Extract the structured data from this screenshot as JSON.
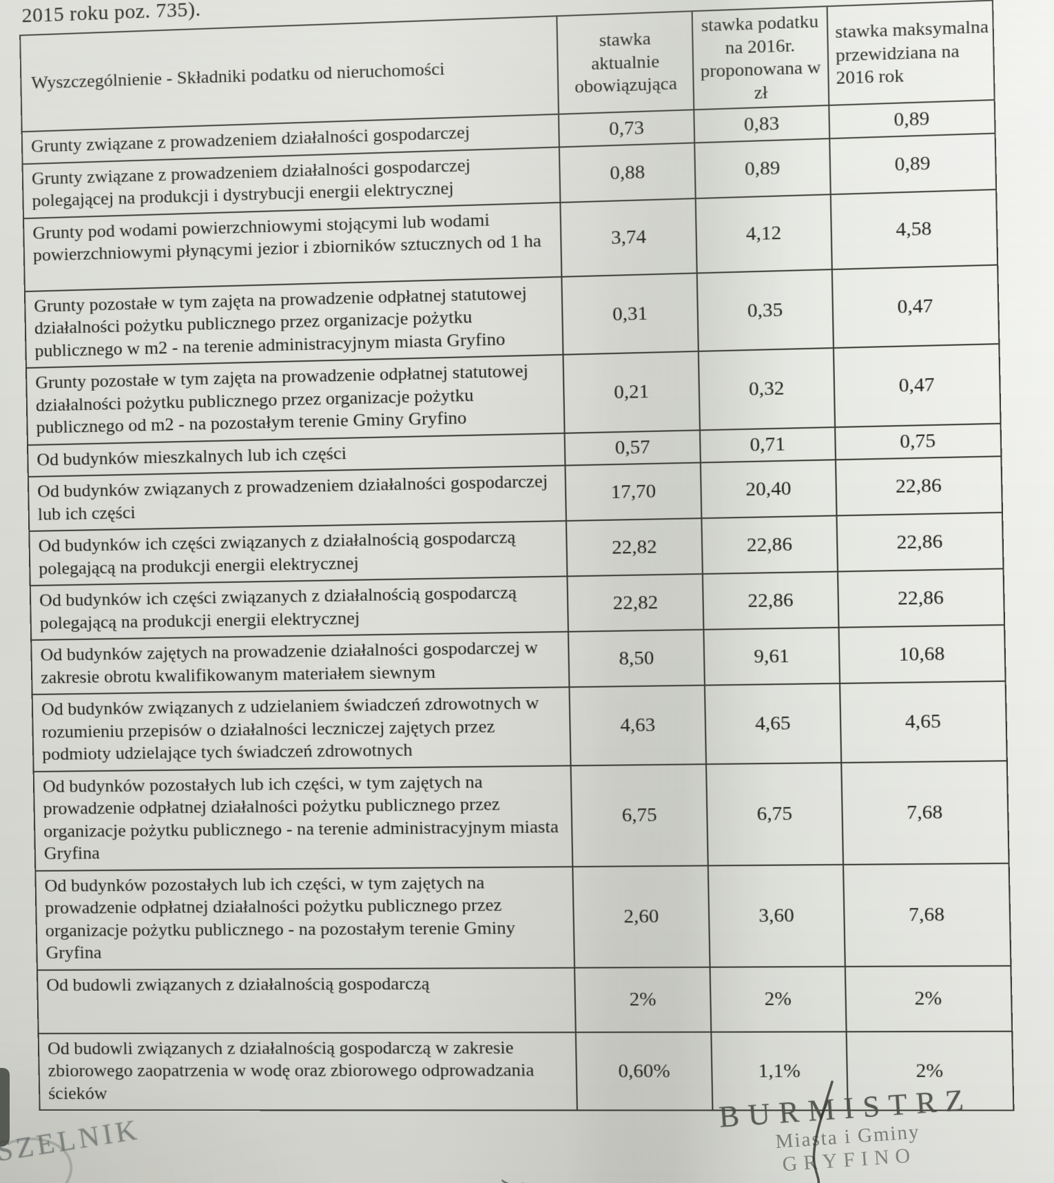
{
  "page": {
    "intro_text": "2015 roku poz. 735)."
  },
  "table": {
    "headers": [
      "Wyszczególnienie - Składniki podatku od nieruchomości",
      "stawka aktualnie obowiązująca",
      "stawka podatku na 2016r. proponowana w zł",
      "stawka maksymalna przewidziana na 2016 rok"
    ],
    "rows": [
      {
        "label": "Grunty związane z prowadzeniem działalności gospodarczej",
        "current": "0,73",
        "proposed": "0,83",
        "max": "0,89"
      },
      {
        "label": "Grunty związane z prowadzeniem działalności gospodarczej polegającej na produkcji i dystrybucji energii elektrycznej",
        "current": "0,88",
        "proposed": "0,89",
        "max": "0,89"
      },
      {
        "label": "Grunty pod wodami powierzchniowymi stojącymi lub wodami powierzchniowymi płynącymi jezior i zbiorników sztucznych od 1 ha",
        "current": "3,74",
        "proposed": "4,12",
        "max": "4,58"
      },
      {
        "label": "Grunty pozostałe w tym zajęta na prowadzenie odpłatnej statutowej działalności pożytku publicznego przez organizacje pożytku publicznego w m2 - na terenie administracyjnym miasta Gryfino",
        "current": "0,31",
        "proposed": "0,35",
        "max": "0,47"
      },
      {
        "label": "Grunty pozostałe w tym zajęta na prowadzenie odpłatnej statutowej działalności pożytku publicznego przez organizacje pożytku publicznego od m2 - na pozostałym terenie Gminy Gryfino",
        "current": "0,21",
        "proposed": "0,32",
        "max": "0,47"
      },
      {
        "label": "Od budynków mieszkalnych lub ich części",
        "current": "0,57",
        "proposed": "0,71",
        "max": "0,75"
      },
      {
        "label": "Od budynków związanych z prowadzeniem działalności gospodarczej lub ich części",
        "current": "17,70",
        "proposed": "20,40",
        "max": "22,86"
      },
      {
        "label": "Od budynków ich części związanych z działalnością gospodarczą polegającą na produkcji energii elektrycznej",
        "current": "22,82",
        "proposed": "22,86",
        "max": "22,86"
      },
      {
        "label": "Od budynków ich części związanych z działalnością gospodarczą polegającą na produkcji energii elektrycznej",
        "current": "22,82",
        "proposed": "22,86",
        "max": "22,86"
      },
      {
        "label": "Od budynków zajętych na prowadzenie działalności gospodarczej w zakresie obrotu kwalifikowanym materiałem siewnym",
        "current": "8,50",
        "proposed": "9,61",
        "max": "10,68"
      },
      {
        "label": "Od budynków związanych z udzielaniem świadczeń zdrowotnych w rozumieniu przepisów o działalności leczniczej zajętych przez podmioty udzielające tych świadczeń zdrowotnych",
        "current": "4,63",
        "proposed": "4,65",
        "max": "4,65"
      },
      {
        "label": "Od budynków pozostałych lub ich części, w tym zajętych na prowadzenie odpłatnej działalności pożytku publicznego przez organizacje pożytku publicznego - na terenie administracyjnym miasta Gryfina",
        "current": "6,75",
        "proposed": "6,75",
        "max": "7,68"
      },
      {
        "label": "Od budynków pozostałych lub ich części, w tym zajętych na prowadzenie odpłatnej działalności pożytku publicznego przez organizacje pożytku publicznego - na pozostałym terenie Gminy Gryfina",
        "current": "2,60",
        "proposed": "3,60",
        "max": "7,68"
      },
      {
        "label": "Od budowli związanych z działalnością gospodarczą",
        "current": "2%",
        "proposed": "2%",
        "max": "2%"
      },
      {
        "label": "Od budowli związanych z działalnością gospodarczą w zakresie zbiorowego zaopatrzenia w wodę oraz zbiorowego odprowadzania ścieków",
        "current": "0,60%",
        "proposed": "1,1%",
        "max": "2%"
      }
    ]
  },
  "stamps": {
    "left_text": "SZELNIK",
    "right_line1": "BURMISTRZ",
    "right_line2": "Miasta i Gminy",
    "right_line3": "GRYFINO"
  }
}
